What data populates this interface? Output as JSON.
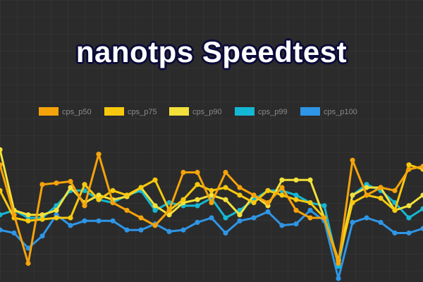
{
  "title": "nanotps Speedtest",
  "chart_data": {
    "type": "line",
    "title": "nanotps Speedtest",
    "xlabel": "",
    "ylabel": "",
    "ylim": [
      0,
      100
    ],
    "grid": true,
    "legend_position": "top-center",
    "x": [
      1,
      2,
      3,
      4,
      5,
      6,
      7,
      8,
      9,
      10,
      11,
      12,
      13,
      14,
      15,
      16,
      17,
      18,
      19,
      20,
      21,
      22,
      23,
      24,
      25,
      26,
      27,
      28,
      29,
      30,
      31
    ],
    "series": [
      {
        "name": "cps_p50",
        "color": "#f5a30a",
        "values": [
          75,
          42,
          10,
          62,
          63,
          64,
          48,
          82,
          50,
          45,
          40,
          35,
          45,
          70,
          70,
          50,
          70,
          60,
          55,
          50,
          60,
          45,
          40,
          40,
          10,
          78,
          55,
          60,
          58,
          72,
          74
        ]
      },
      {
        "name": "cps_p75",
        "color": "#f7c90e",
        "values": [
          58,
          40,
          38,
          39,
          40,
          40,
          62,
          52,
          58,
          55,
          60,
          65,
          45,
          52,
          62,
          58,
          60,
          55,
          50,
          58,
          55,
          52,
          50,
          40,
          12,
          50,
          55,
          53,
          45,
          75,
          72
        ]
      },
      {
        "name": "cps_p90",
        "color": "#f2e13a",
        "values": [
          85,
          45,
          42,
          42,
          45,
          60,
          50,
          55,
          52,
          54,
          60,
          48,
          42,
          50,
          52,
          55,
          52,
          42,
          55,
          48,
          65,
          65,
          65,
          40,
          12,
          55,
          60,
          60,
          45,
          48,
          55
        ]
      },
      {
        "name": "cps_p99",
        "color": "#15b8d4",
        "values": [
          42,
          45,
          40,
          40,
          48,
          58,
          58,
          52,
          50,
          55,
          58,
          45,
          50,
          48,
          48,
          53,
          40,
          45,
          52,
          58,
          58,
          55,
          50,
          48,
          8,
          55,
          62,
          58,
          50,
          40,
          46
        ]
      },
      {
        "name": "cps_p100",
        "color": "#2f95e6",
        "values": [
          32,
          30,
          20,
          28,
          42,
          35,
          38,
          38,
          38,
          32,
          32,
          36,
          31,
          32,
          37,
          40,
          30,
          38,
          40,
          44,
          35,
          36,
          45,
          38,
          0,
          37,
          40,
          37,
          30,
          30,
          33
        ]
      }
    ]
  }
}
